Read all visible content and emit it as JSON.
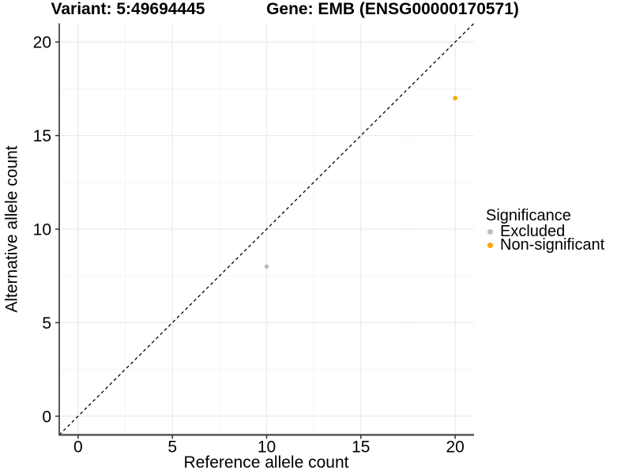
{
  "chart_data": {
    "type": "scatter",
    "title_left": "Variant: 5:49694445",
    "title_right": "Gene: EMB (ENSG00000170571)",
    "xlabel": "Reference allele count",
    "ylabel": "Alternative allele count",
    "xlim": [
      -1,
      21
    ],
    "ylim": [
      -1,
      21
    ],
    "x_major_ticks": [
      0,
      5,
      10,
      15,
      20
    ],
    "y_major_ticks": [
      0,
      5,
      10,
      15,
      20
    ],
    "x_minor_ticks": [
      2.5,
      7.5,
      12.5,
      17.5
    ],
    "y_minor_ticks": [
      2.5,
      7.5,
      12.5,
      17.5
    ],
    "grid": "on",
    "identity_line": {
      "x1": -1,
      "y1": -1,
      "x2": 21,
      "y2": 21,
      "style": "dashed",
      "color": "#000000"
    },
    "series": [
      {
        "name": "Excluded",
        "color": "#BCBCBC",
        "points": [
          {
            "x": 10,
            "y": 8
          }
        ]
      },
      {
        "name": "Non-significant",
        "color": "#FFA500",
        "points": [
          {
            "x": 20,
            "y": 17
          }
        ]
      }
    ],
    "legend": {
      "title": "Significance",
      "position": "right"
    },
    "colors": {
      "grid_major": "#EBEBEB",
      "grid_minor": "#F5F5F5",
      "axis_line": "#474747",
      "tick_mark": "#333333",
      "tick_label": "#000000"
    }
  }
}
